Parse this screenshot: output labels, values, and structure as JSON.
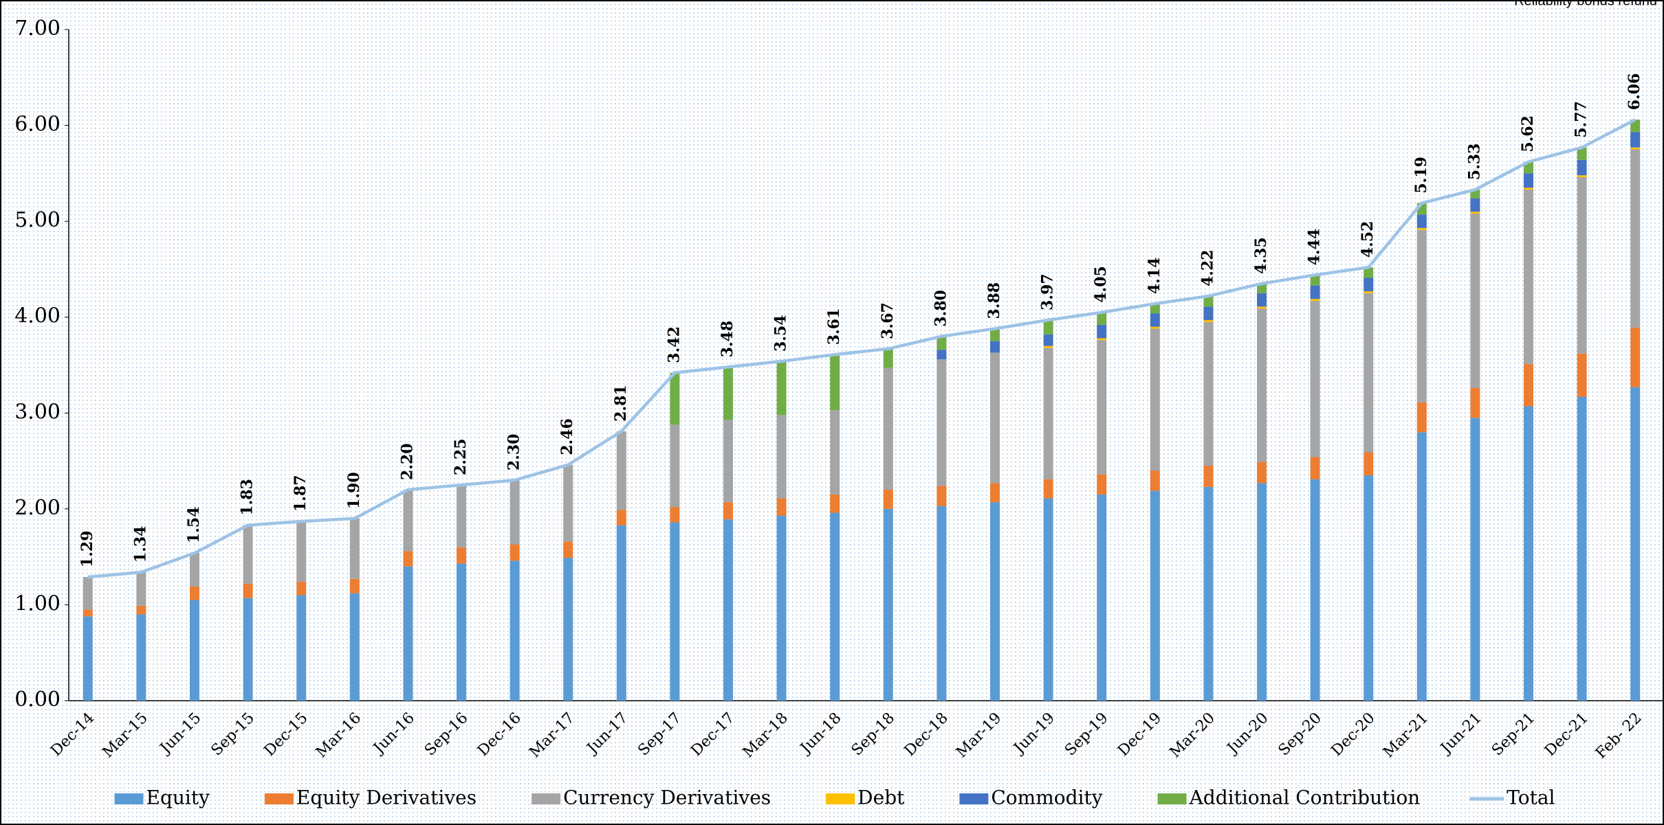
{
  "chart_data": {
    "type": "bar",
    "stacked": true,
    "note": "Reliability bonds refund",
    "categories": [
      "Dec-14",
      "Mar-15",
      "Jun-15",
      "Sep-15",
      "Dec-15",
      "Mar-16",
      "Jun-16",
      "Sep-16",
      "Dec-16",
      "Mar-17",
      "Jun-17",
      "Sep-17",
      "Dec-17",
      "Mar-18",
      "Jun-18",
      "Sep-18",
      "Dec-18",
      "Mar-19",
      "Jun-19",
      "Sep-19",
      "Dec-19",
      "Mar-20",
      "Jun-20",
      "Sep-20",
      "Dec-20",
      "Mar-21",
      "Jun-21",
      "Sep-21",
      "Dec-21",
      "Feb- 22"
    ],
    "series": [
      {
        "name": "Equity",
        "color": "#5b9bd5",
        "values": [
          0.88,
          0.9,
          1.05,
          1.07,
          1.1,
          1.12,
          1.4,
          1.43,
          1.46,
          1.49,
          1.83,
          1.86,
          1.89,
          1.93,
          1.96,
          2.0,
          2.03,
          2.07,
          2.11,
          2.15,
          2.19,
          2.23,
          2.27,
          2.31,
          2.35,
          2.8,
          2.95,
          3.07,
          3.17,
          3.27
        ]
      },
      {
        "name": "Equity Derivatives",
        "color": "#ed7d31",
        "values": [
          0.07,
          0.09,
          0.14,
          0.15,
          0.14,
          0.15,
          0.16,
          0.17,
          0.17,
          0.17,
          0.16,
          0.16,
          0.18,
          0.18,
          0.19,
          0.2,
          0.21,
          0.2,
          0.2,
          0.21,
          0.21,
          0.22,
          0.22,
          0.23,
          0.24,
          0.31,
          0.31,
          0.44,
          0.45,
          0.62
        ]
      },
      {
        "name": "Currency Derivatives",
        "color": "#a5a5a5",
        "values": [
          0.34,
          0.35,
          0.35,
          0.61,
          0.63,
          0.63,
          0.64,
          0.65,
          0.67,
          0.8,
          0.82,
          0.86,
          0.86,
          0.87,
          0.88,
          1.27,
          1.32,
          1.36,
          1.37,
          1.4,
          1.48,
          1.5,
          1.6,
          1.63,
          1.66,
          1.8,
          1.82,
          1.82,
          1.84,
          1.86
        ]
      },
      {
        "name": "Debt",
        "color": "#ffc000",
        "values": [
          0,
          0,
          0,
          0,
          0,
          0,
          0,
          0,
          0,
          0,
          0,
          0,
          0,
          0,
          0,
          0,
          0,
          0,
          0.02,
          0.02,
          0.02,
          0.02,
          0.02,
          0.02,
          0.02,
          0.02,
          0.02,
          0.02,
          0.02,
          0.02
        ]
      },
      {
        "name": "Commodity",
        "color": "#4472c4",
        "values": [
          0,
          0,
          0,
          0,
          0,
          0,
          0,
          0,
          0,
          0,
          0,
          0,
          0,
          0,
          0,
          0,
          0.1,
          0.12,
          0.12,
          0.14,
          0.14,
          0.14,
          0.14,
          0.14,
          0.14,
          0.14,
          0.14,
          0.15,
          0.16,
          0.16
        ]
      },
      {
        "name": "Additional Contribution",
        "color": "#70ad47",
        "values": [
          0,
          0,
          0,
          0,
          0,
          0,
          0,
          0,
          0,
          0,
          0,
          0.54,
          0.55,
          0.56,
          0.58,
          0.2,
          0.14,
          0.13,
          0.15,
          0.13,
          0.1,
          0.11,
          0.1,
          0.11,
          0.11,
          0.12,
          0.09,
          0.12,
          0.13,
          0.13
        ]
      },
      {
        "name": "Total",
        "type": "line",
        "color": "#9dc3e6",
        "values": [
          1.29,
          1.34,
          1.54,
          1.83,
          1.87,
          1.9,
          2.2,
          2.25,
          2.3,
          2.46,
          2.81,
          3.42,
          3.48,
          3.54,
          3.61,
          3.67,
          3.8,
          3.88,
          3.97,
          4.05,
          4.14,
          4.22,
          4.35,
          4.44,
          4.52,
          5.19,
          5.33,
          5.62,
          5.77,
          6.06
        ],
        "value_labels": [
          "1.29",
          "1.34",
          "1.54",
          "1.83",
          "1.87",
          "1.90",
          "2.20",
          "2.25",
          "2.30",
          "2.46",
          "2.81",
          "3.42",
          "3.48",
          "3.54",
          "3.61",
          "3.67",
          "3.80",
          "3.88",
          "3.97",
          "4.05",
          "4.14",
          "4.22",
          "4.35",
          "4.44",
          "4.52",
          "5.19",
          "5.33",
          "5.62",
          "5.77",
          "6.06"
        ]
      }
    ],
    "ylim": [
      0,
      7
    ],
    "yticks": [
      {
        "value": 0,
        "label": "0.00"
      },
      {
        "value": 1,
        "label": "1.00"
      },
      {
        "value": 2,
        "label": "2.00"
      },
      {
        "value": 3,
        "label": "3.00"
      },
      {
        "value": 4,
        "label": "4.00"
      },
      {
        "value": 5,
        "label": "5.00"
      },
      {
        "value": 6,
        "label": "6.00"
      },
      {
        "value": 7,
        "label": "7.00"
      }
    ],
    "grid": false,
    "legend": "bottom"
  }
}
